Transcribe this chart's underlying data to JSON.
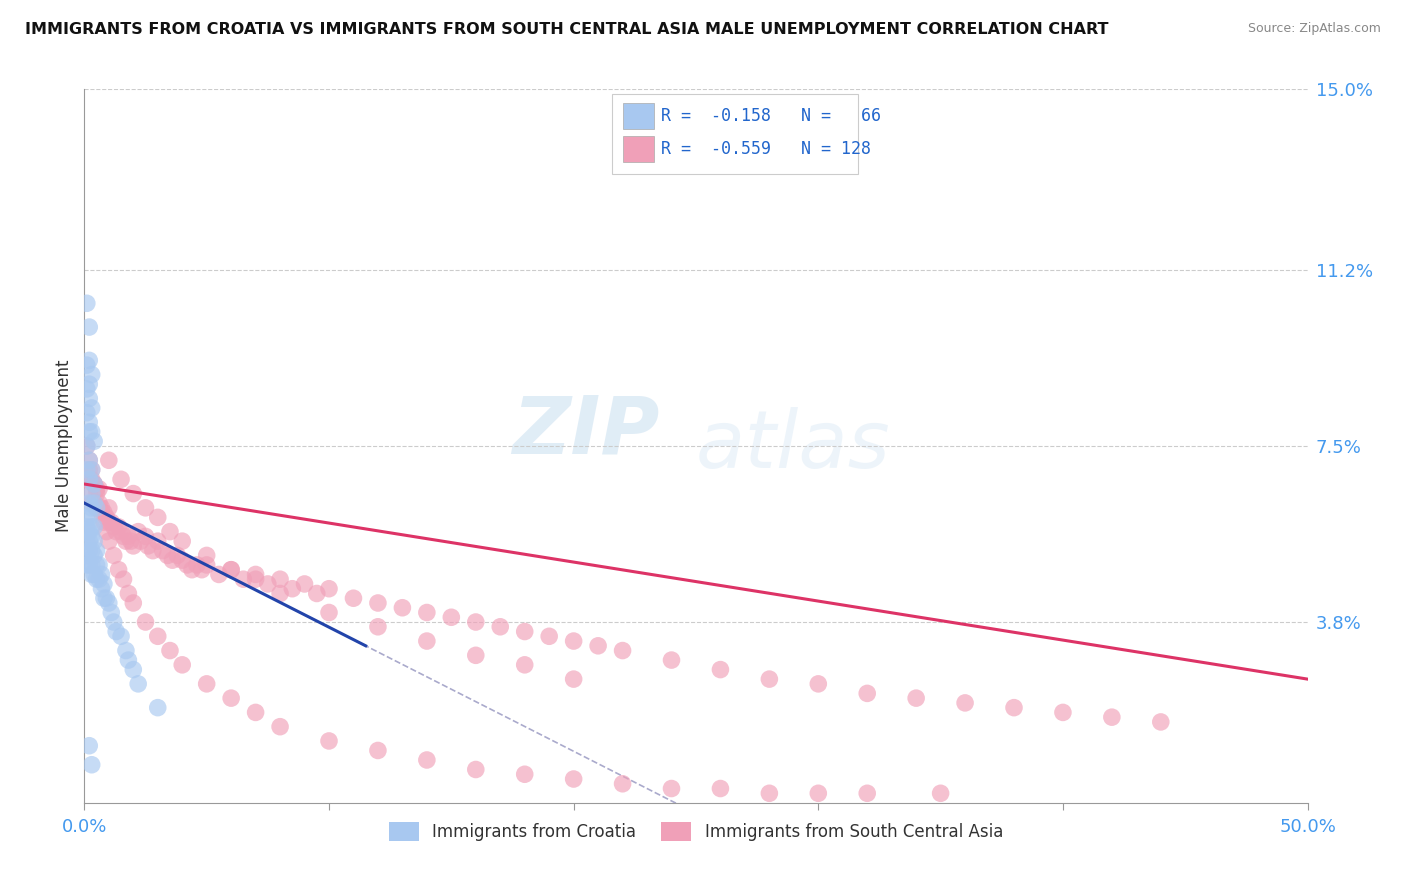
{
  "title": "IMMIGRANTS FROM CROATIA VS IMMIGRANTS FROM SOUTH CENTRAL ASIA MALE UNEMPLOYMENT CORRELATION CHART",
  "source": "Source: ZipAtlas.com",
  "ylabel": "Male Unemployment",
  "xlim": [
    0.0,
    0.5
  ],
  "ylim": [
    0.0,
    0.15
  ],
  "xtick_positions": [
    0.0,
    0.1,
    0.2,
    0.3,
    0.4,
    0.5
  ],
  "xtick_labels": [
    "0.0%",
    "",
    "",
    "",
    "",
    "50.0%"
  ],
  "yticks_right": [
    0.038,
    0.075,
    0.112,
    0.15
  ],
  "ytick_labels_right": [
    "3.8%",
    "7.5%",
    "11.2%",
    "15.0%"
  ],
  "grid_yticks": [
    0.038,
    0.075,
    0.112,
    0.15
  ],
  "legend_r1": "R = -0.158",
  "legend_n1": "N =  66",
  "legend_r2": "R = -0.559",
  "legend_n2": "N = 128",
  "color_croatia": "#a8c8f0",
  "color_sca": "#f0a0b8",
  "color_line_croatia": "#2244aa",
  "color_line_sca": "#dd3366",
  "color_dashed": "#aaaacc",
  "watermark_zip": "ZIP",
  "watermark_atlas": "atlas",
  "croatia_x": [
    0.001,
    0.001,
    0.001,
    0.001,
    0.001,
    0.002,
    0.002,
    0.002,
    0.002,
    0.002,
    0.002,
    0.003,
    0.003,
    0.003,
    0.003,
    0.003,
    0.003,
    0.004,
    0.004,
    0.004,
    0.004,
    0.005,
    0.005,
    0.005,
    0.006,
    0.006,
    0.007,
    0.007,
    0.008,
    0.008,
    0.009,
    0.01,
    0.011,
    0.012,
    0.013,
    0.015,
    0.017,
    0.018,
    0.02,
    0.022,
    0.001,
    0.001,
    0.002,
    0.002,
    0.002,
    0.003,
    0.003,
    0.004,
    0.004,
    0.005,
    0.001,
    0.001,
    0.002,
    0.002,
    0.003,
    0.003,
    0.004,
    0.001,
    0.002,
    0.002,
    0.003,
    0.001,
    0.002,
    0.03,
    0.002,
    0.003
  ],
  "croatia_y": [
    0.05,
    0.052,
    0.055,
    0.058,
    0.06,
    0.05,
    0.053,
    0.055,
    0.057,
    0.06,
    0.063,
    0.048,
    0.05,
    0.053,
    0.056,
    0.058,
    0.062,
    0.048,
    0.052,
    0.055,
    0.058,
    0.047,
    0.05,
    0.053,
    0.047,
    0.05,
    0.045,
    0.048,
    0.043,
    0.046,
    0.043,
    0.042,
    0.04,
    0.038,
    0.036,
    0.035,
    0.032,
    0.03,
    0.028,
    0.025,
    0.07,
    0.075,
    0.068,
    0.072,
    0.078,
    0.065,
    0.07,
    0.063,
    0.067,
    0.062,
    0.082,
    0.087,
    0.08,
    0.085,
    0.078,
    0.083,
    0.076,
    0.092,
    0.088,
    0.093,
    0.09,
    0.105,
    0.1,
    0.02,
    0.012,
    0.008
  ],
  "sca_x": [
    0.001,
    0.002,
    0.002,
    0.003,
    0.003,
    0.004,
    0.004,
    0.005,
    0.005,
    0.006,
    0.006,
    0.007,
    0.008,
    0.009,
    0.01,
    0.01,
    0.011,
    0.012,
    0.013,
    0.014,
    0.015,
    0.016,
    0.017,
    0.018,
    0.019,
    0.02,
    0.022,
    0.023,
    0.025,
    0.026,
    0.028,
    0.03,
    0.032,
    0.034,
    0.036,
    0.038,
    0.04,
    0.042,
    0.044,
    0.046,
    0.048,
    0.05,
    0.055,
    0.06,
    0.065,
    0.07,
    0.075,
    0.08,
    0.085,
    0.09,
    0.095,
    0.1,
    0.11,
    0.12,
    0.13,
    0.14,
    0.15,
    0.16,
    0.17,
    0.18,
    0.19,
    0.2,
    0.21,
    0.22,
    0.24,
    0.26,
    0.28,
    0.3,
    0.32,
    0.34,
    0.36,
    0.38,
    0.4,
    0.42,
    0.44,
    0.01,
    0.015,
    0.02,
    0.025,
    0.03,
    0.035,
    0.04,
    0.05,
    0.06,
    0.07,
    0.08,
    0.1,
    0.12,
    0.14,
    0.16,
    0.18,
    0.2,
    0.001,
    0.002,
    0.003,
    0.004,
    0.005,
    0.006,
    0.007,
    0.008,
    0.009,
    0.01,
    0.012,
    0.014,
    0.016,
    0.018,
    0.02,
    0.025,
    0.03,
    0.035,
    0.04,
    0.05,
    0.06,
    0.07,
    0.08,
    0.1,
    0.12,
    0.14,
    0.16,
    0.18,
    0.2,
    0.22,
    0.24,
    0.26,
    0.28,
    0.3,
    0.32,
    0.35
  ],
  "sca_y": [
    0.068,
    0.065,
    0.07,
    0.063,
    0.068,
    0.063,
    0.067,
    0.062,
    0.066,
    0.062,
    0.066,
    0.062,
    0.061,
    0.06,
    0.059,
    0.062,
    0.059,
    0.058,
    0.057,
    0.058,
    0.057,
    0.056,
    0.055,
    0.056,
    0.055,
    0.054,
    0.057,
    0.055,
    0.056,
    0.054,
    0.053,
    0.055,
    0.053,
    0.052,
    0.051,
    0.052,
    0.051,
    0.05,
    0.049,
    0.05,
    0.049,
    0.05,
    0.048,
    0.049,
    0.047,
    0.048,
    0.046,
    0.047,
    0.045,
    0.046,
    0.044,
    0.045,
    0.043,
    0.042,
    0.041,
    0.04,
    0.039,
    0.038,
    0.037,
    0.036,
    0.035,
    0.034,
    0.033,
    0.032,
    0.03,
    0.028,
    0.026,
    0.025,
    0.023,
    0.022,
    0.021,
    0.02,
    0.019,
    0.018,
    0.017,
    0.072,
    0.068,
    0.065,
    0.062,
    0.06,
    0.057,
    0.055,
    0.052,
    0.049,
    0.047,
    0.044,
    0.04,
    0.037,
    0.034,
    0.031,
    0.029,
    0.026,
    0.075,
    0.072,
    0.07,
    0.067,
    0.065,
    0.063,
    0.061,
    0.059,
    0.057,
    0.055,
    0.052,
    0.049,
    0.047,
    0.044,
    0.042,
    0.038,
    0.035,
    0.032,
    0.029,
    0.025,
    0.022,
    0.019,
    0.016,
    0.013,
    0.011,
    0.009,
    0.007,
    0.006,
    0.005,
    0.004,
    0.003,
    0.003,
    0.002,
    0.002,
    0.002,
    0.002
  ]
}
